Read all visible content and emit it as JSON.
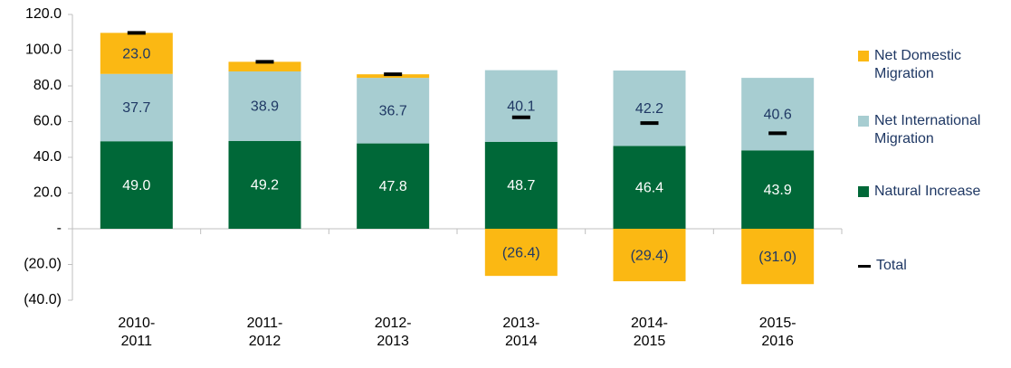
{
  "chart_data": {
    "type": "stacked-bar",
    "categories": [
      "2010-2011",
      "2011-2012",
      "2012-2013",
      "2013-2014",
      "2014-2015",
      "2015-2016"
    ],
    "series": [
      {
        "name": "Net Domestic Migration",
        "color": "#fbb813",
        "label_color": "#1f3864",
        "values": [
          23.0,
          5.4,
          2.0,
          -26.4,
          -29.4,
          -31.0
        ],
        "value_labels": [
          "23.0",
          null,
          null,
          "(26.4)",
          "(29.4)",
          "(31.0)"
        ]
      },
      {
        "name": "Net International Migration",
        "color": "#a7cdd1",
        "label_color": "#1f3864",
        "values": [
          37.7,
          38.9,
          36.7,
          40.1,
          42.2,
          40.6
        ],
        "value_labels": [
          "37.7",
          "38.9",
          "36.7",
          "40.1",
          "42.2",
          "40.6"
        ]
      },
      {
        "name": "Natural Increase",
        "color": "#006838",
        "label_color": "#ffffff",
        "values": [
          49.0,
          49.2,
          47.8,
          48.7,
          46.4,
          43.9
        ],
        "value_labels": [
          "49.0",
          "49.2",
          "47.8",
          "48.7",
          "46.4",
          "43.9"
        ]
      },
      {
        "name": "Total",
        "color": "#000000",
        "marker": "dash",
        "values": [
          109.7,
          93.5,
          86.5,
          62.4,
          59.2,
          53.5
        ]
      }
    ],
    "ylim": [
      -40,
      120
    ],
    "yticks": [
      {
        "value": -40,
        "label": "(40.0)"
      },
      {
        "value": -20,
        "label": "(20.0)"
      },
      {
        "value": 0,
        "label": "-"
      },
      {
        "value": 20,
        "label": "20.0"
      },
      {
        "value": 40,
        "label": "40.0"
      },
      {
        "value": 60,
        "label": "60.0"
      },
      {
        "value": 80,
        "label": "80.0"
      },
      {
        "value": 100,
        "label": "100.0"
      },
      {
        "value": 120,
        "label": "120.0"
      }
    ],
    "legend": "right"
  }
}
